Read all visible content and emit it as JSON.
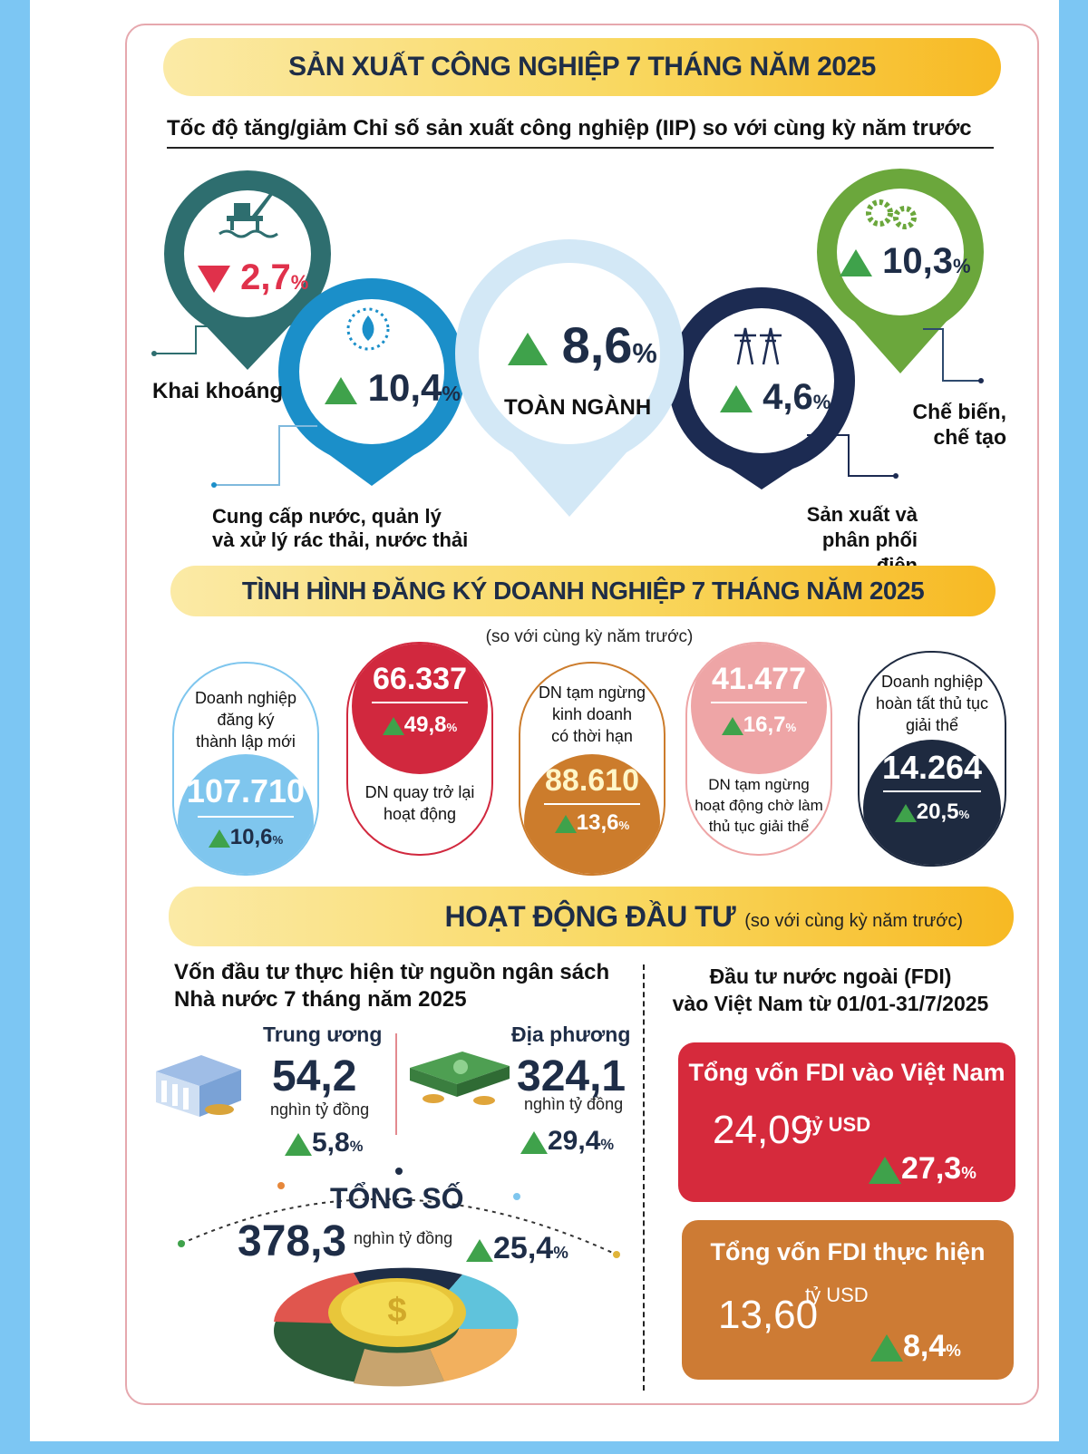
{
  "section1": {
    "title": "SẢN XUẤT CÔNG NGHIỆP 7 THÁNG NĂM 2025",
    "subtitle": "Tốc độ tăng/giảm Chỉ số sản xuất công nghiệp (IIP) so với cùng kỳ năm trước",
    "pins": {
      "mining": {
        "value": "2,7",
        "pct": "%",
        "label": "Khai khoáng",
        "direction": "down",
        "color": "#2e6e6f",
        "icon": "oil-rig-icon"
      },
      "water": {
        "value": "10,4",
        "pct": "%",
        "label_line1": "Cung cấp nước, quản lý",
        "label_line2": "và xử lý rác thải, nước thải",
        "direction": "up",
        "color": "#1b8fc9",
        "icon": "water-drop-icon"
      },
      "total": {
        "value": "8,6",
        "pct": "%",
        "label": "TOÀN NGÀNH",
        "direction": "up",
        "color": "#d3e8f6"
      },
      "electricity": {
        "value": "4,6",
        "pct": "%",
        "label_line1": "Sản xuất và",
        "label_line2": "phân phối điện",
        "direction": "up",
        "color": "#1c2b52",
        "icon": "power-tower-icon"
      },
      "manufacturing": {
        "value": "10,3",
        "pct": "%",
        "label_line1": "Chế biến,",
        "label_line2": "chế tạo",
        "direction": "up",
        "color": "#6ba73c",
        "icon": "gears-icon"
      }
    }
  },
  "section2": {
    "title": "TÌNH HÌNH ĐĂNG KÝ DOANH NGHIỆP 7 THÁNG  NĂM 2025",
    "note": "(so với cùng kỳ năm trước)",
    "items": [
      {
        "label_line1": "Doanh nghiệp",
        "label_line2": "đăng ký",
        "label_line3": "thành lập mới",
        "value": "107.710",
        "change": "10,6",
        "pct": "%",
        "color": "#7fc6ee"
      },
      {
        "value": "66.337",
        "change": "49,8",
        "pct": "%",
        "label_line1": "DN quay trở lại",
        "label_line2": "hoạt động",
        "color": "#d1283e"
      },
      {
        "label_line1": "DN tạm ngừng",
        "label_line2": "kinh doanh",
        "label_line3": "có thời hạn",
        "value": "88.610",
        "change": "13,6",
        "pct": "%",
        "color": "#cc7c2c"
      },
      {
        "value": "41.477",
        "change": "16,7",
        "pct": "%",
        "label_line1": "DN tạm ngừng",
        "label_line2": "hoạt động chờ làm",
        "label_line3": "thủ tục giải thể",
        "color": "#eea5a6"
      },
      {
        "label_line1": "Doanh nghiệp",
        "label_line2": "hoàn tất thủ tục",
        "label_line3": "giải thể",
        "value": "14.264",
        "change": "20,5",
        "pct": "%",
        "color": "#1e2a40"
      }
    ]
  },
  "section3": {
    "title": "HOẠT ĐỘNG ĐẦU TƯ",
    "note": "(so với cùng kỳ năm trước)",
    "budget": {
      "title_line1": "Vốn đầu tư thực hiện từ nguồn ngân sách",
      "title_line2": "Nhà nước 7 tháng năm 2025",
      "central": {
        "label": "Trung ương",
        "value": "54,2",
        "unit": "nghìn tỷ đồng",
        "change": "5,8",
        "pct": "%"
      },
      "local": {
        "label": "Địa phương",
        "value": "324,1",
        "unit": "nghìn tỷ đồng",
        "change": "29,4",
        "pct": "%"
      },
      "total": {
        "label": "TỔNG SỐ",
        "value": "378,3",
        "unit": "nghìn tỷ đồng",
        "change": "25,4",
        "pct": "%"
      }
    },
    "fdi": {
      "title_line1": "Đầu tư nước ngoài (FDI)",
      "title_line2": "vào Việt Nam từ 01/01-31/7/2025",
      "registered": {
        "label": "Tổng vốn FDI vào Việt Nam",
        "value": "24,09",
        "unit": "tỷ USD",
        "change": "27,3",
        "pct": "%",
        "color": "#d62a3c"
      },
      "disbursed": {
        "label": "Tổng vốn FDI thực hiện",
        "value": "13,60",
        "unit": "tỷ USD",
        "change": "8,4",
        "pct": "%",
        "color": "#cd7b34"
      }
    }
  }
}
